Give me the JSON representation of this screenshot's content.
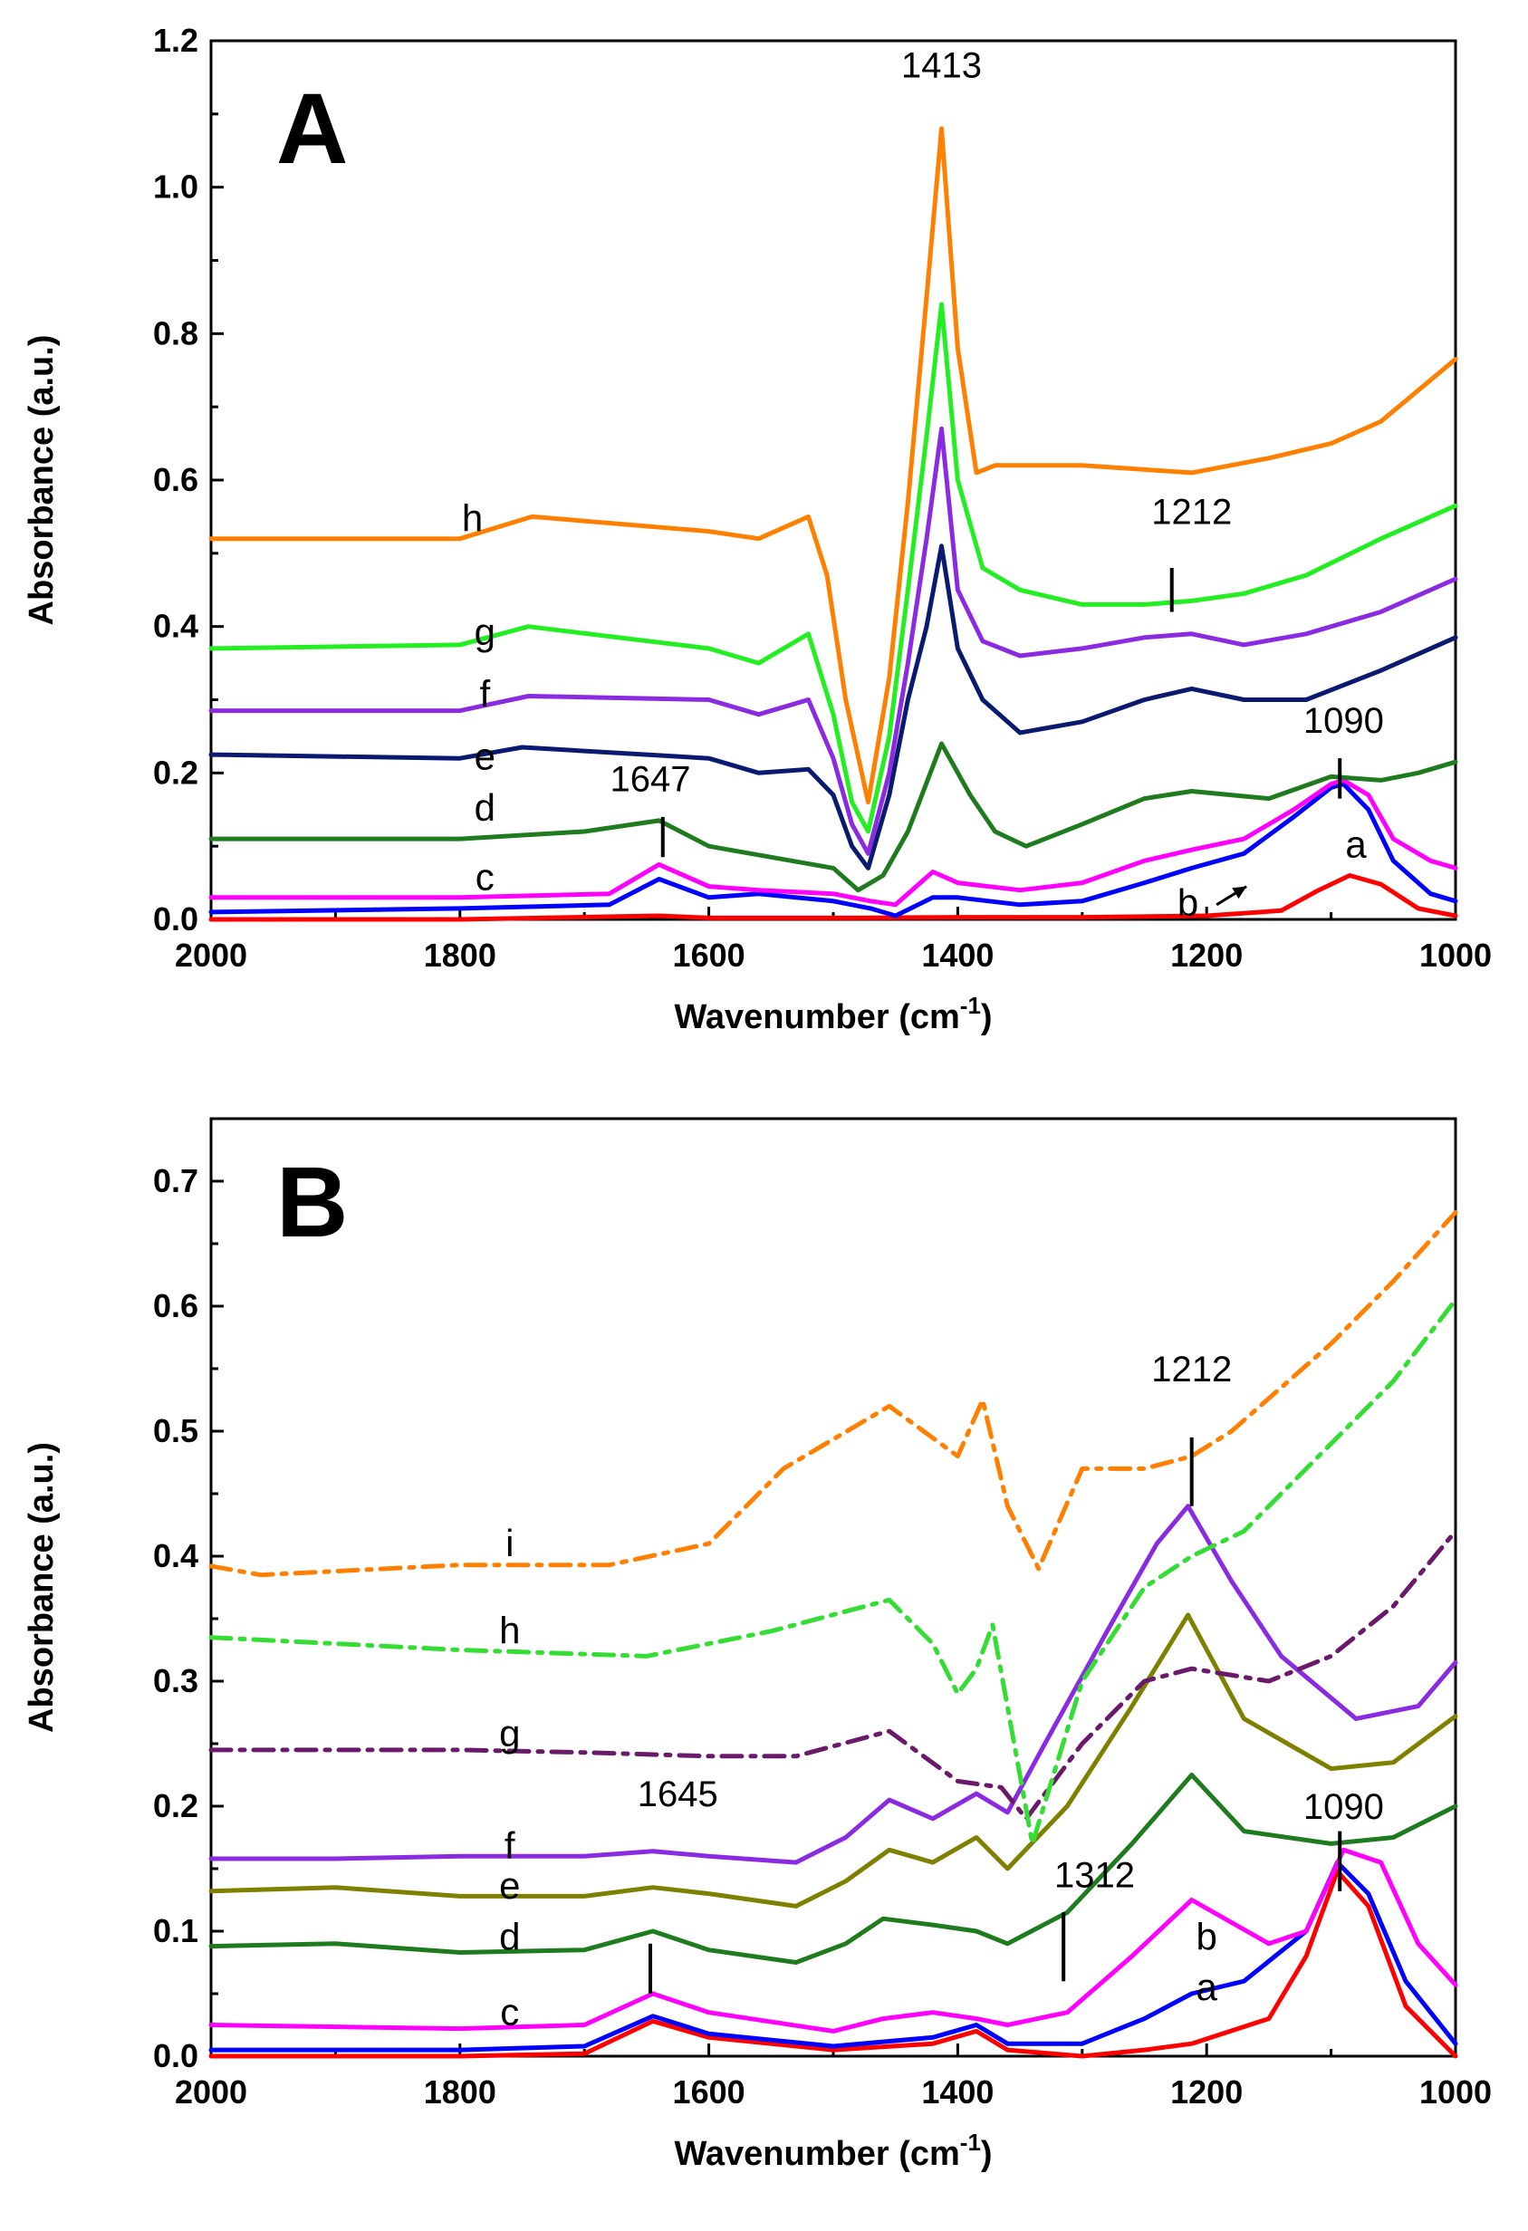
{
  "chart_data": [
    {
      "type": "line",
      "panel": "A",
      "xlabel": "Wavenumber (cm",
      "xlabel_sup": "-1",
      "xlabel_close": ")",
      "ylabel": "Absorbance (a.u.)",
      "xlim": [
        2000,
        1000
      ],
      "ylim": [
        0,
        1.2
      ],
      "xticks": [
        2000,
        1800,
        1600,
        1400,
        1200,
        1000
      ],
      "xtick_labels": [
        "2000",
        "1800",
        "1600",
        "1400",
        "1200",
        "1000"
      ],
      "yticks": [
        0,
        0.2,
        0.4,
        0.6,
        0.8,
        1.0,
        1.2
      ],
      "ytick_labels": [
        "0.0",
        "0.2",
        "0.4",
        "0.6",
        "0.8",
        "1.0",
        "1.2"
      ],
      "series": [
        {
          "name": "a",
          "color": "#ff0000",
          "style": "solid",
          "x": [
            2000,
            1800,
            1640,
            1600,
            1480,
            1400,
            1300,
            1200,
            1140,
            1110,
            1085,
            1060,
            1030,
            1000
          ],
          "y": [
            0.0,
            0.0,
            0.005,
            0.002,
            0.002,
            0.003,
            0.003,
            0.005,
            0.012,
            0.04,
            0.06,
            0.048,
            0.015,
            0.005
          ]
        },
        {
          "name": "b",
          "color": "#0000ff",
          "style": "solid",
          "x": [
            2000,
            1800,
            1680,
            1640,
            1600,
            1560,
            1500,
            1470,
            1450,
            1420,
            1400,
            1350,
            1300,
            1250,
            1212,
            1170,
            1130,
            1100,
            1090,
            1070,
            1050,
            1020,
            1000
          ],
          "y": [
            0.01,
            0.015,
            0.02,
            0.055,
            0.03,
            0.035,
            0.025,
            0.015,
            0.005,
            0.03,
            0.03,
            0.02,
            0.025,
            0.05,
            0.07,
            0.09,
            0.14,
            0.18,
            0.185,
            0.15,
            0.08,
            0.035,
            0.025
          ]
        },
        {
          "name": "c",
          "color": "#ff00ff",
          "style": "solid",
          "x": [
            2000,
            1800,
            1680,
            1640,
            1600,
            1560,
            1500,
            1470,
            1450,
            1420,
            1400,
            1350,
            1300,
            1250,
            1212,
            1170,
            1130,
            1100,
            1090,
            1070,
            1050,
            1020,
            1000
          ],
          "y": [
            0.03,
            0.03,
            0.035,
            0.075,
            0.045,
            0.04,
            0.035,
            0.025,
            0.02,
            0.065,
            0.05,
            0.04,
            0.05,
            0.08,
            0.095,
            0.11,
            0.15,
            0.185,
            0.19,
            0.17,
            0.11,
            0.08,
            0.07
          ]
        },
        {
          "name": "d",
          "color": "#1e7b1e",
          "style": "solid",
          "x": [
            2000,
            1800,
            1700,
            1640,
            1600,
            1550,
            1500,
            1480,
            1460,
            1440,
            1413,
            1390,
            1370,
            1345,
            1300,
            1250,
            1212,
            1150,
            1100,
            1060,
            1030,
            1000
          ],
          "y": [
            0.11,
            0.11,
            0.12,
            0.135,
            0.1,
            0.085,
            0.07,
            0.04,
            0.06,
            0.12,
            0.24,
            0.17,
            0.12,
            0.1,
            0.13,
            0.165,
            0.175,
            0.165,
            0.195,
            0.19,
            0.2,
            0.215
          ]
        },
        {
          "name": "e",
          "color": "#0a1a70",
          "style": "solid",
          "x": [
            2000,
            1800,
            1750,
            1600,
            1560,
            1520,
            1500,
            1485,
            1472,
            1455,
            1440,
            1425,
            1413,
            1400,
            1380,
            1350,
            1300,
            1250,
            1212,
            1170,
            1120,
            1060,
            1000
          ],
          "y": [
            0.225,
            0.22,
            0.235,
            0.22,
            0.2,
            0.205,
            0.17,
            0.1,
            0.07,
            0.17,
            0.3,
            0.4,
            0.51,
            0.37,
            0.3,
            0.255,
            0.27,
            0.3,
            0.315,
            0.3,
            0.3,
            0.34,
            0.385
          ]
        },
        {
          "name": "f",
          "color": "#8a2be2",
          "style": "solid",
          "x": [
            2000,
            1800,
            1745,
            1600,
            1560,
            1520,
            1500,
            1485,
            1472,
            1455,
            1440,
            1425,
            1413,
            1400,
            1380,
            1350,
            1300,
            1250,
            1212,
            1170,
            1120,
            1060,
            1000
          ],
          "y": [
            0.285,
            0.285,
            0.305,
            0.3,
            0.28,
            0.3,
            0.22,
            0.13,
            0.09,
            0.2,
            0.35,
            0.52,
            0.67,
            0.45,
            0.38,
            0.36,
            0.37,
            0.385,
            0.39,
            0.375,
            0.39,
            0.42,
            0.465
          ]
        },
        {
          "name": "g",
          "color": "#22ee22",
          "style": "solid",
          "x": [
            2000,
            1800,
            1745,
            1600,
            1560,
            1520,
            1500,
            1485,
            1472,
            1455,
            1440,
            1425,
            1413,
            1400,
            1380,
            1350,
            1300,
            1250,
            1212,
            1170,
            1120,
            1060,
            1000
          ],
          "y": [
            0.37,
            0.375,
            0.4,
            0.37,
            0.35,
            0.39,
            0.28,
            0.16,
            0.12,
            0.25,
            0.45,
            0.66,
            0.84,
            0.6,
            0.48,
            0.45,
            0.43,
            0.43,
            0.435,
            0.445,
            0.47,
            0.52,
            0.565
          ]
        },
        {
          "name": "h",
          "color": "#ff8000",
          "style": "solid",
          "x": [
            2000,
            1800,
            1742,
            1600,
            1560,
            1520,
            1505,
            1490,
            1472,
            1455,
            1440,
            1425,
            1413,
            1400,
            1385,
            1370,
            1300,
            1212,
            1150,
            1100,
            1060,
            1000
          ],
          "y": [
            0.52,
            0.52,
            0.55,
            0.53,
            0.52,
            0.55,
            0.47,
            0.3,
            0.16,
            0.33,
            0.57,
            0.85,
            1.08,
            0.78,
            0.61,
            0.62,
            0.62,
            0.61,
            0.63,
            0.65,
            0.68,
            0.765
          ]
        }
      ],
      "annotations": [
        {
          "text": "1413",
          "x": 1413
        },
        {
          "text": "1212",
          "x": 1212
        },
        {
          "text": "1090",
          "x": 1090
        },
        {
          "text": "1647",
          "x": 1647
        }
      ],
      "curve_labels": [
        "a",
        "b",
        "c",
        "d",
        "e",
        "f",
        "g",
        "h"
      ]
    },
    {
      "type": "line",
      "panel": "B",
      "xlabel": "Wavenumber (cm",
      "xlabel_sup": "-1",
      "xlabel_close": ")",
      "ylabel": "Absorbance (a.u.)",
      "xlim": [
        2000,
        1000
      ],
      "ylim": [
        0,
        0.75
      ],
      "xticks": [
        2000,
        1800,
        1600,
        1400,
        1200,
        1000
      ],
      "xtick_labels": [
        "2000",
        "1800",
        "1600",
        "1400",
        "1200",
        "1000"
      ],
      "yticks": [
        0,
        0.1,
        0.2,
        0.3,
        0.4,
        0.5,
        0.6,
        0.7
      ],
      "ytick_labels": [
        "0.0",
        "0.1",
        "0.2",
        "0.3",
        "0.4",
        "0.5",
        "0.6",
        "0.7"
      ],
      "series": [
        {
          "name": "a",
          "color": "#ff0000",
          "style": "solid",
          "x": [
            2000,
            1800,
            1700,
            1645,
            1600,
            1500,
            1420,
            1385,
            1360,
            1300,
            1250,
            1212,
            1150,
            1120,
            1095,
            1070,
            1040,
            1000
          ],
          "y": [
            0.0,
            0.0,
            0.002,
            0.028,
            0.015,
            0.005,
            0.01,
            0.02,
            0.005,
            0.0,
            0.005,
            0.01,
            0.03,
            0.08,
            0.148,
            0.12,
            0.04,
            0.0
          ]
        },
        {
          "name": "b",
          "color": "#0000ff",
          "style": "solid",
          "x": [
            2000,
            1800,
            1700,
            1645,
            1600,
            1500,
            1420,
            1385,
            1360,
            1300,
            1250,
            1212,
            1170,
            1120,
            1095,
            1070,
            1040,
            1000
          ],
          "y": [
            0.005,
            0.005,
            0.008,
            0.032,
            0.018,
            0.008,
            0.015,
            0.025,
            0.01,
            0.01,
            0.03,
            0.05,
            0.06,
            0.1,
            0.155,
            0.13,
            0.06,
            0.01
          ]
        },
        {
          "name": "c",
          "color": "#ff00ff",
          "style": "solid",
          "x": [
            2000,
            1800,
            1700,
            1645,
            1600,
            1500,
            1460,
            1420,
            1385,
            1360,
            1312,
            1260,
            1212,
            1150,
            1120,
            1090,
            1060,
            1030,
            1000
          ],
          "y": [
            0.025,
            0.022,
            0.025,
            0.05,
            0.035,
            0.02,
            0.03,
            0.035,
            0.03,
            0.025,
            0.035,
            0.08,
            0.125,
            0.09,
            0.1,
            0.165,
            0.155,
            0.09,
            0.057
          ]
        },
        {
          "name": "d",
          "color": "#1e7b1e",
          "style": "solid",
          "x": [
            2000,
            1900,
            1800,
            1700,
            1645,
            1600,
            1530,
            1490,
            1460,
            1420,
            1385,
            1360,
            1312,
            1260,
            1212,
            1170,
            1100,
            1050,
            1000
          ],
          "y": [
            0.088,
            0.09,
            0.083,
            0.085,
            0.1,
            0.085,
            0.075,
            0.09,
            0.11,
            0.105,
            0.1,
            0.09,
            0.115,
            0.17,
            0.225,
            0.18,
            0.17,
            0.175,
            0.2
          ]
        },
        {
          "name": "e",
          "color": "#808000",
          "style": "solid",
          "x": [
            2000,
            1900,
            1800,
            1700,
            1645,
            1600,
            1530,
            1490,
            1455,
            1420,
            1385,
            1360,
            1312,
            1260,
            1215,
            1170,
            1100,
            1050,
            1000
          ],
          "y": [
            0.132,
            0.135,
            0.128,
            0.128,
            0.135,
            0.13,
            0.12,
            0.14,
            0.165,
            0.155,
            0.175,
            0.15,
            0.2,
            0.28,
            0.353,
            0.27,
            0.23,
            0.235,
            0.272
          ]
        },
        {
          "name": "f",
          "color": "#8a2be2",
          "style": "solid",
          "x": [
            2000,
            1900,
            1800,
            1700,
            1645,
            1600,
            1530,
            1490,
            1455,
            1420,
            1385,
            1360,
            1330,
            1280,
            1240,
            1215,
            1180,
            1140,
            1080,
            1030,
            1000
          ],
          "y": [
            0.158,
            0.158,
            0.16,
            0.16,
            0.164,
            0.16,
            0.155,
            0.175,
            0.205,
            0.19,
            0.21,
            0.195,
            0.25,
            0.34,
            0.41,
            0.44,
            0.38,
            0.32,
            0.27,
            0.28,
            0.315
          ]
        },
        {
          "name": "g",
          "color": "#6b1a6b",
          "style": "dashdot",
          "x": [
            2000,
            1800,
            1700,
            1600,
            1530,
            1455,
            1400,
            1365,
            1345,
            1300,
            1250,
            1212,
            1150,
            1100,
            1050,
            1000
          ],
          "y": [
            0.245,
            0.245,
            0.243,
            0.24,
            0.24,
            0.26,
            0.22,
            0.215,
            0.19,
            0.25,
            0.3,
            0.31,
            0.3,
            0.32,
            0.36,
            0.42
          ]
        },
        {
          "name": "h",
          "color": "#33dd33",
          "style": "dashdot",
          "x": [
            2000,
            1900,
            1800,
            1650,
            1550,
            1455,
            1420,
            1400,
            1385,
            1372,
            1340,
            1300,
            1250,
            1212,
            1170,
            1100,
            1050,
            1000
          ],
          "y": [
            0.335,
            0.33,
            0.325,
            0.32,
            0.34,
            0.365,
            0.33,
            0.29,
            0.31,
            0.345,
            0.17,
            0.3,
            0.375,
            0.4,
            0.42,
            0.49,
            0.54,
            0.605
          ]
        },
        {
          "name": "i",
          "color": "#ff8000",
          "style": "dashdot",
          "x": [
            2000,
            1960,
            1800,
            1680,
            1600,
            1540,
            1455,
            1400,
            1380,
            1360,
            1335,
            1300,
            1250,
            1212,
            1180,
            1100,
            1050,
            1000
          ],
          "y": [
            0.392,
            0.385,
            0.393,
            0.393,
            0.41,
            0.47,
            0.52,
            0.48,
            0.525,
            0.44,
            0.39,
            0.47,
            0.47,
            0.48,
            0.5,
            0.57,
            0.62,
            0.675
          ]
        }
      ],
      "annotations": [
        {
          "text": "1212",
          "x": 1212
        },
        {
          "text": "1645",
          "x": 1645
        },
        {
          "text": "1090",
          "x": 1090
        },
        {
          "text": "1312",
          "x": 1312
        }
      ],
      "curve_labels": [
        "a",
        "b",
        "c",
        "d",
        "e",
        "f",
        "g",
        "h",
        "i"
      ]
    }
  ]
}
